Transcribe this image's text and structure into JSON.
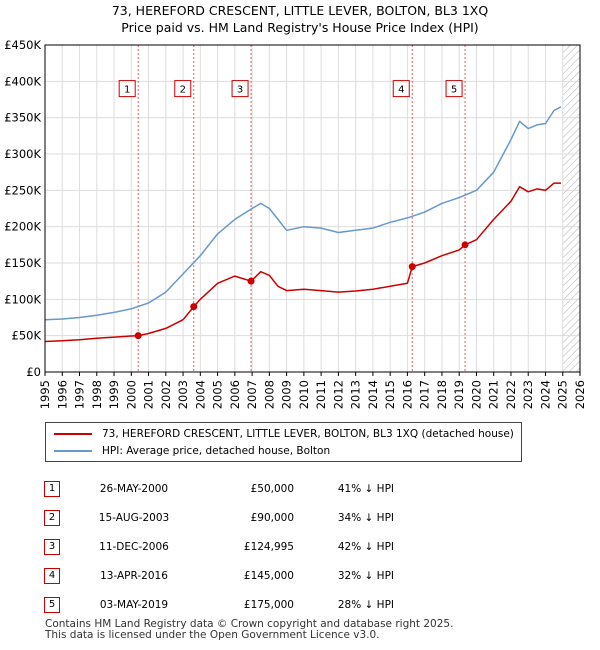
{
  "title_line1": "73, HEREFORD CRESCENT, LITTLE LEVER, BOLTON, BL3 1XQ",
  "title_line2": "Price paid vs. HM Land Registry's House Price Index (HPI)",
  "chart_data": {
    "type": "line",
    "ylim": [
      0,
      450000
    ],
    "xlim": [
      1995,
      2026
    ],
    "y_ticks": [
      0,
      50000,
      100000,
      150000,
      200000,
      250000,
      300000,
      350000,
      400000,
      450000
    ],
    "y_tick_labels": [
      "£0",
      "£50K",
      "£100K",
      "£150K",
      "£200K",
      "£250K",
      "£300K",
      "£350K",
      "£400K",
      "£450K"
    ],
    "x_ticks": [
      1995,
      1996,
      1997,
      1998,
      1999,
      2000,
      2001,
      2002,
      2003,
      2004,
      2005,
      2006,
      2007,
      2008,
      2009,
      2010,
      2011,
      2012,
      2013,
      2014,
      2015,
      2016,
      2017,
      2018,
      2019,
      2020,
      2021,
      2022,
      2023,
      2024,
      2025,
      2026
    ],
    "grid": true,
    "future_hatch_from": 2025.0,
    "series": [
      {
        "name": "73, HEREFORD CRESCENT, LITTLE LEVER, BOLTON, BL3 1XQ (detached house)",
        "color": "#cc0000",
        "x": [
          1995.0,
          1996.0,
          1997.0,
          1998.0,
          1999.0,
          2000.0,
          2000.4,
          2001.0,
          2002.0,
          2003.0,
          2003.62,
          2004.0,
          2005.0,
          2006.0,
          2006.94,
          2007.5,
          2008.0,
          2008.5,
          2009.0,
          2010.0,
          2011.0,
          2012.0,
          2013.0,
          2014.0,
          2015.0,
          2016.0,
          2016.28,
          2017.0,
          2018.0,
          2019.0,
          2019.34,
          2020.0,
          2021.0,
          2022.0,
          2022.5,
          2023.0,
          2023.5,
          2024.0,
          2024.5,
          2024.9
        ],
        "y": [
          42000,
          43000,
          44500,
          46500,
          48000,
          49500,
          50000,
          53000,
          60000,
          72000,
          90000,
          100000,
          122000,
          132000,
          124995,
          138000,
          133000,
          118000,
          112000,
          114000,
          112000,
          110000,
          111500,
          114000,
          118000,
          122000,
          145000,
          150000,
          160000,
          168000,
          175000,
          182000,
          210000,
          235000,
          255000,
          248000,
          252000,
          250000,
          260000,
          260000
        ]
      },
      {
        "name": "HPI: Average price, detached house, Bolton",
        "color": "#6699cc",
        "x": [
          1995.0,
          1996.0,
          1997.0,
          1998.0,
          1999.0,
          2000.0,
          2001.0,
          2002.0,
          2003.0,
          2004.0,
          2005.0,
          2006.0,
          2007.0,
          2007.5,
          2008.0,
          2008.5,
          2009.0,
          2010.0,
          2011.0,
          2012.0,
          2013.0,
          2014.0,
          2015.0,
          2016.0,
          2017.0,
          2018.0,
          2019.0,
          2020.0,
          2021.0,
          2022.0,
          2022.5,
          2023.0,
          2023.5,
          2024.0,
          2024.5,
          2024.9
        ],
        "y": [
          72000,
          73000,
          75000,
          78000,
          82000,
          87000,
          95000,
          110000,
          135000,
          160000,
          190000,
          210000,
          225000,
          232000,
          225000,
          210000,
          195000,
          200000,
          198000,
          192000,
          195000,
          198000,
          206000,
          212000,
          220000,
          232000,
          240000,
          250000,
          275000,
          320000,
          345000,
          335000,
          340000,
          342000,
          360000,
          365000
        ]
      }
    ],
    "sale_markers": [
      {
        "label": "1",
        "x": 2000.4,
        "y": 50000
      },
      {
        "label": "2",
        "x": 2003.62,
        "y": 90000
      },
      {
        "label": "3",
        "x": 2006.94,
        "y": 124995
      },
      {
        "label": "4",
        "x": 2016.28,
        "y": 145000
      },
      {
        "label": "5",
        "x": 2019.34,
        "y": 175000
      }
    ],
    "marker_box_value": 390000
  },
  "legend": {
    "property_label": "73, HEREFORD CRESCENT, LITTLE LEVER, BOLTON, BL3 1XQ (detached house)",
    "hpi_label": "HPI: Average price, detached house, Bolton",
    "property_color": "#cc0000",
    "hpi_color": "#6699cc"
  },
  "sales": [
    {
      "num": "1",
      "date": "26-MAY-2000",
      "price": "£50,000",
      "hpi": "41% ↓ HPI"
    },
    {
      "num": "2",
      "date": "15-AUG-2003",
      "price": "£90,000",
      "hpi": "34% ↓ HPI"
    },
    {
      "num": "3",
      "date": "11-DEC-2006",
      "price": "£124,995",
      "hpi": "42% ↓ HPI"
    },
    {
      "num": "4",
      "date": "13-APR-2016",
      "price": "£145,000",
      "hpi": "32% ↓ HPI"
    },
    {
      "num": "5",
      "date": "03-MAY-2019",
      "price": "£175,000",
      "hpi": "28% ↓ HPI"
    }
  ],
  "footer_line1": "Contains HM Land Registry data © Crown copyright and database right 2025.",
  "footer_line2": "This data is licensed under the Open Government Licence v3.0."
}
